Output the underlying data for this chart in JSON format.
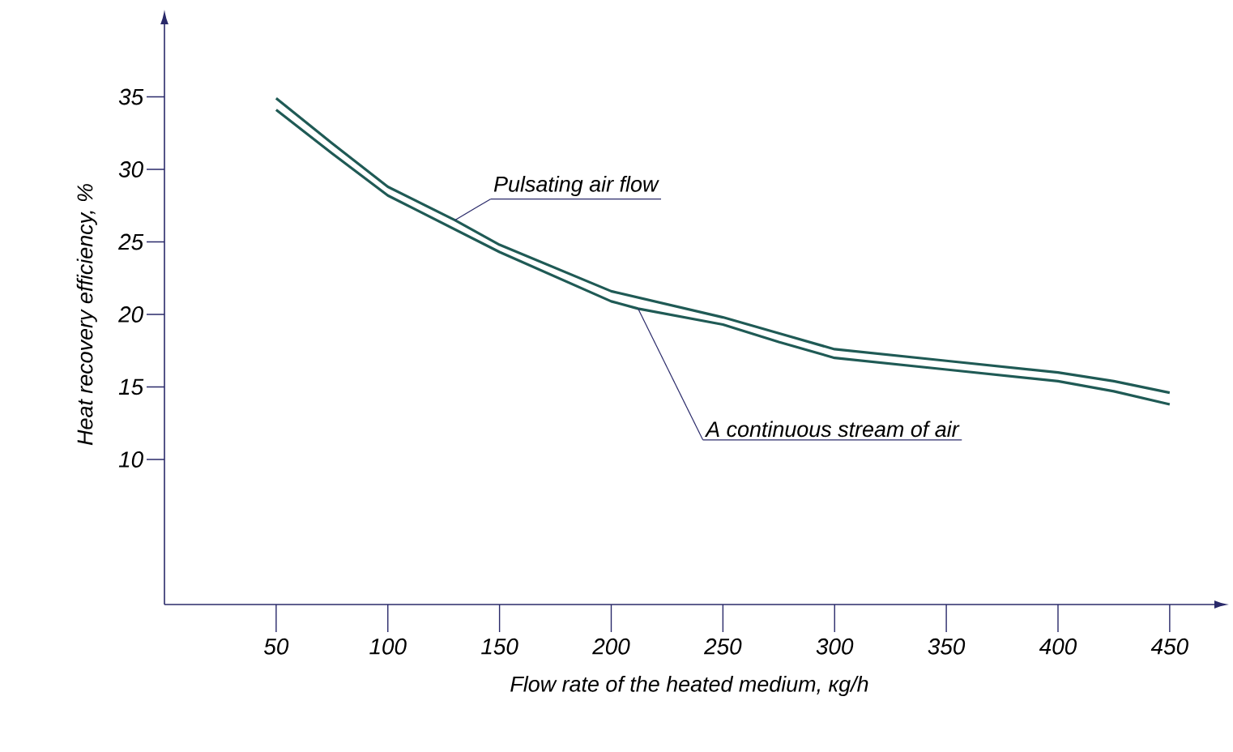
{
  "chart_data": {
    "type": "line",
    "xlabel": "Flow rate of the heated medium, кg/h",
    "ylabel": "Heat recovery efficiency, %",
    "xlim": [
      0,
      470
    ],
    "ylim": [
      0,
      40
    ],
    "xticks": [
      50,
      100,
      150,
      200,
      250,
      300,
      350,
      400,
      450
    ],
    "yticks": [
      10,
      15,
      20,
      25,
      30,
      35
    ],
    "legend": false,
    "marker": "none",
    "line_style": "solid",
    "series": [
      {
        "name": "Pulsating air flow",
        "color": "#1f5a55",
        "x": [
          50,
          75,
          100,
          130,
          150,
          200,
          250,
          275,
          300,
          350,
          400,
          425,
          450
        ],
        "values": [
          34.9,
          31.8,
          28.8,
          26.5,
          24.8,
          21.6,
          19.8,
          18.7,
          17.6,
          16.8,
          16.0,
          15.4,
          14.6
        ]
      },
      {
        "name": "A continuous stream of air",
        "color": "#1f5a55",
        "x": [
          50,
          75,
          100,
          150,
          200,
          212,
          250,
          275,
          300,
          350,
          400,
          425,
          450
        ],
        "values": [
          34.1,
          31.1,
          28.2,
          24.3,
          20.9,
          20.4,
          19.3,
          18.1,
          17.0,
          16.2,
          15.4,
          14.7,
          13.8
        ]
      }
    ]
  }
}
